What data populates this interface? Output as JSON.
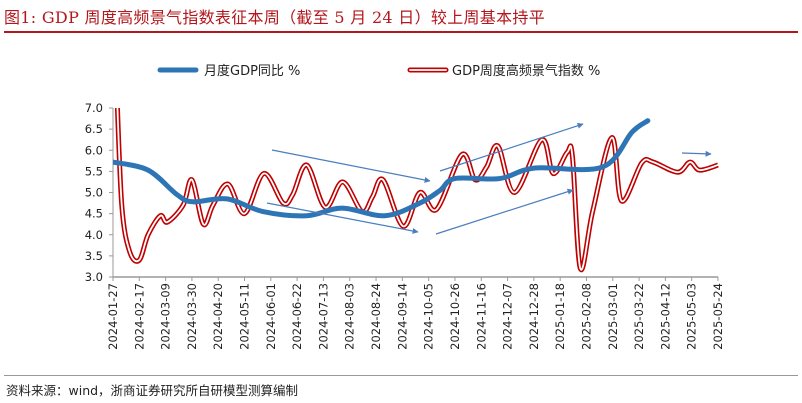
{
  "title": "图1:   GDP 周度高频景气指数表征本周（截至 5 月 24 日）较上周基本持平",
  "source": "资料来源：wind，浙商证券研究所自研模型测算编制",
  "chart_data": {
    "type": "line",
    "title": "GDP 周度高频景气指数表征本周（截至 5 月 24 日）较上周基本持平",
    "xlabel": "",
    "ylabel": "",
    "ylim": [
      3.0,
      7.0
    ],
    "yticks": [
      "3.0",
      "3.5",
      "4.0",
      "4.5",
      "5.0",
      "5.5",
      "6.0",
      "6.5",
      "7.0"
    ],
    "x_unit": "weeks since 2024-01-27",
    "categories": [
      "2024-01-27",
      "2024-02-17",
      "2024-03-09",
      "2024-03-30",
      "2024-04-20",
      "2024-05-11",
      "2024-06-01",
      "2024-06-22",
      "2024-07-13",
      "2024-08-03",
      "2024-08-24",
      "2024-09-14",
      "2024-10-05",
      "2024-10-26",
      "2024-11-16",
      "2024-12-07",
      "2024-12-28",
      "2025-01-18",
      "2025-02-08",
      "2025-03-01",
      "2025-03-22",
      "2025-04-12",
      "2025-05-03",
      "2025-05-24"
    ],
    "grid": false,
    "legend_position": "top",
    "series": [
      {
        "name": "月度GDP同比 %",
        "color": "#2e75b6",
        "style": "thick",
        "points": [
          [
            0,
            5.72
          ],
          [
            4.0,
            5.53
          ],
          [
            7.3,
            4.95
          ],
          [
            9.1,
            4.78
          ],
          [
            13.0,
            4.85
          ],
          [
            17.1,
            4.55
          ],
          [
            22.1,
            4.45
          ],
          [
            26.1,
            4.63
          ],
          [
            31.0,
            4.45
          ],
          [
            35.0,
            4.75
          ],
          [
            37.3,
            5.05
          ],
          [
            39.0,
            5.33
          ],
          [
            44.1,
            5.33
          ],
          [
            48.1,
            5.58
          ],
          [
            55.8,
            5.6
          ],
          [
            59.2,
            6.43
          ],
          [
            61.0,
            6.7
          ]
        ]
      },
      {
        "name": "GDP周度高频景气指数 %",
        "color": "#c00000",
        "style": "double",
        "points": [
          [
            0.4,
            7.6
          ],
          [
            1.0,
            4.7
          ],
          [
            1.9,
            3.6
          ],
          [
            3.0,
            3.4
          ],
          [
            4.0,
            4.0
          ],
          [
            5.4,
            4.45
          ],
          [
            6.2,
            4.3
          ],
          [
            8.0,
            4.7
          ],
          [
            9.0,
            5.3
          ],
          [
            10.3,
            4.25
          ],
          [
            11.4,
            4.7
          ],
          [
            13.1,
            5.2
          ],
          [
            15.0,
            4.5
          ],
          [
            17.2,
            5.45
          ],
          [
            19.4,
            4.75
          ],
          [
            20.5,
            4.95
          ],
          [
            22.1,
            5.65
          ],
          [
            24.2,
            4.65
          ],
          [
            26.2,
            5.25
          ],
          [
            28.4,
            4.55
          ],
          [
            29.6,
            4.9
          ],
          [
            30.8,
            5.3
          ],
          [
            33.1,
            4.2
          ],
          [
            35.0,
            5.0
          ],
          [
            36.9,
            4.6
          ],
          [
            39.8,
            5.9
          ],
          [
            41.3,
            5.3
          ],
          [
            42.6,
            5.6
          ],
          [
            43.9,
            6.1
          ],
          [
            45.8,
            5.0
          ],
          [
            48.9,
            6.25
          ],
          [
            50.2,
            5.45
          ],
          [
            51.8,
            5.95
          ],
          [
            52.4,
            5.85
          ],
          [
            53.3,
            3.2
          ],
          [
            54.7,
            4.55
          ],
          [
            56.9,
            6.3
          ],
          [
            58.0,
            4.8
          ],
          [
            60.3,
            5.7
          ],
          [
            61.6,
            5.72
          ],
          [
            64.4,
            5.48
          ],
          [
            65.8,
            5.72
          ],
          [
            66.9,
            5.53
          ],
          [
            69.0,
            5.65
          ]
        ]
      }
    ]
  }
}
